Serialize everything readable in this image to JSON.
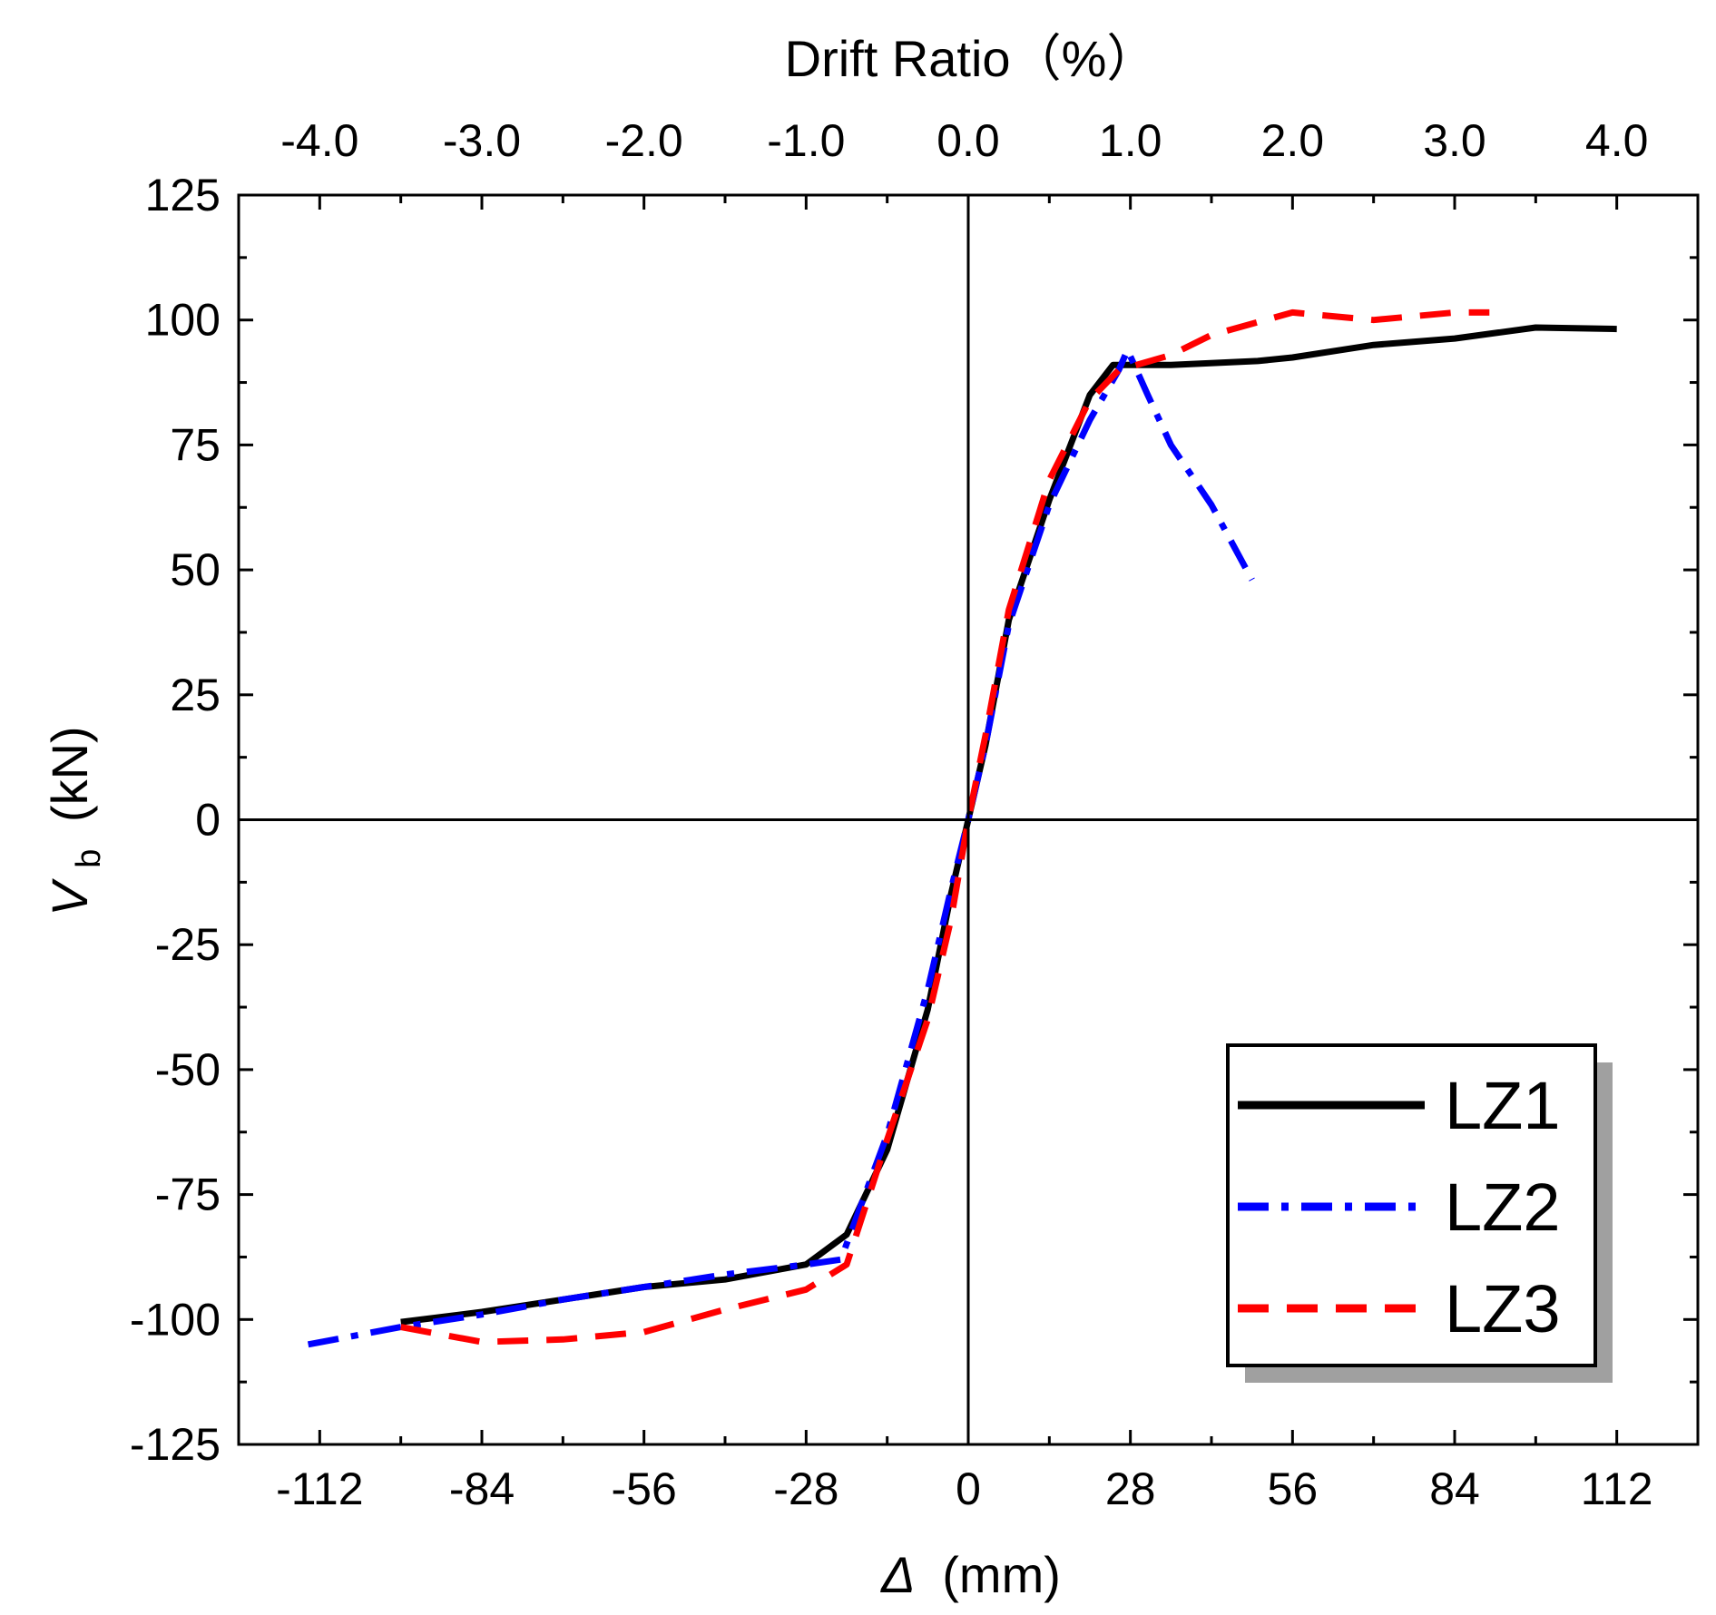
{
  "chart_data": {
    "type": "line",
    "title": "",
    "xlabel_symbol": "Δ",
    "xlabel_unit": "(mm)",
    "ylabel_symbol": "V",
    "ylabel_subscript": "b",
    "ylabel_unit": "(kN)",
    "top_axis_label": "Drift Ratio（%）",
    "xlim": [
      -126,
      126
    ],
    "ylim": [
      -125,
      125
    ],
    "x_ticks": [
      -112,
      -84,
      -56,
      -28,
      0,
      28,
      56,
      84,
      112
    ],
    "x_tick_labels": [
      "-112",
      "-84",
      "-56",
      "-28",
      "0",
      "28",
      "56",
      "84",
      "112"
    ],
    "y_ticks": [
      -125,
      -100,
      -75,
      -50,
      -25,
      0,
      25,
      50,
      75,
      100,
      125
    ],
    "y_tick_labels": [
      "-125",
      "-100",
      "-75",
      "-50",
      "-25",
      "0",
      "25",
      "50",
      "75",
      "100",
      "125"
    ],
    "top_ticks": [
      -112,
      -84,
      -56,
      -28,
      0,
      28,
      56,
      84,
      112
    ],
    "top_tick_labels": [
      "-4.0",
      "-3.0",
      "-2.0",
      "-1.0",
      "0.0",
      "1.0",
      "2.0",
      "3.0",
      "4.0"
    ],
    "grid": false,
    "legend_position": "bottom-right",
    "series": [
      {
        "name": "LZ1",
        "color": "#000000",
        "style": "solid",
        "points": [
          [
            -98,
            -100.5
          ],
          [
            -84,
            -98.5
          ],
          [
            -70,
            -96
          ],
          [
            -56,
            -93.5
          ],
          [
            -42,
            -92
          ],
          [
            -28,
            -89
          ],
          [
            -21,
            -83
          ],
          [
            -14,
            -66
          ],
          [
            -7,
            -38
          ],
          [
            -3,
            -15
          ],
          [
            0,
            0
          ],
          [
            3,
            15
          ],
          [
            7,
            40
          ],
          [
            14,
            64
          ],
          [
            21,
            85
          ],
          [
            25,
            91
          ],
          [
            35,
            91
          ],
          [
            50,
            91.8
          ],
          [
            56,
            92.5
          ],
          [
            70,
            95
          ],
          [
            84,
            96.3
          ],
          [
            98,
            98.5
          ],
          [
            112,
            98.2
          ]
        ]
      },
      {
        "name": "LZ2",
        "color": "#0000ff",
        "style": "dashdot",
        "points": [
          [
            -114,
            -105
          ],
          [
            -98,
            -101.5
          ],
          [
            -84,
            -99
          ],
          [
            -70,
            -96
          ],
          [
            -56,
            -93.5
          ],
          [
            -42,
            -91
          ],
          [
            -28,
            -89
          ],
          [
            -22,
            -88
          ],
          [
            -14,
            -63
          ],
          [
            -7,
            -34
          ],
          [
            -3,
            -14
          ],
          [
            0,
            0
          ],
          [
            3,
            15
          ],
          [
            7,
            39
          ],
          [
            14,
            63
          ],
          [
            21,
            80
          ],
          [
            26,
            90
          ],
          [
            27.5,
            94
          ],
          [
            31,
            85
          ],
          [
            35,
            75
          ],
          [
            42,
            63
          ],
          [
            49,
            48
          ]
        ]
      },
      {
        "name": "LZ3",
        "color": "#ff0000",
        "style": "dashed",
        "points": [
          [
            -98,
            -101.5
          ],
          [
            -84,
            -104.5
          ],
          [
            -70,
            -104
          ],
          [
            -56,
            -102.5
          ],
          [
            -42,
            -98
          ],
          [
            -28,
            -94
          ],
          [
            -21,
            -89
          ],
          [
            -14,
            -64
          ],
          [
            -7,
            -40
          ],
          [
            -3,
            -20
          ],
          [
            0,
            0
          ],
          [
            3,
            17
          ],
          [
            7,
            42
          ],
          [
            14,
            68
          ],
          [
            21,
            84
          ],
          [
            26,
            90
          ],
          [
            35,
            93
          ],
          [
            42,
            97
          ],
          [
            56,
            101.5
          ],
          [
            70,
            100
          ],
          [
            84,
            101.5
          ],
          [
            90,
            101.5
          ]
        ]
      }
    ]
  }
}
